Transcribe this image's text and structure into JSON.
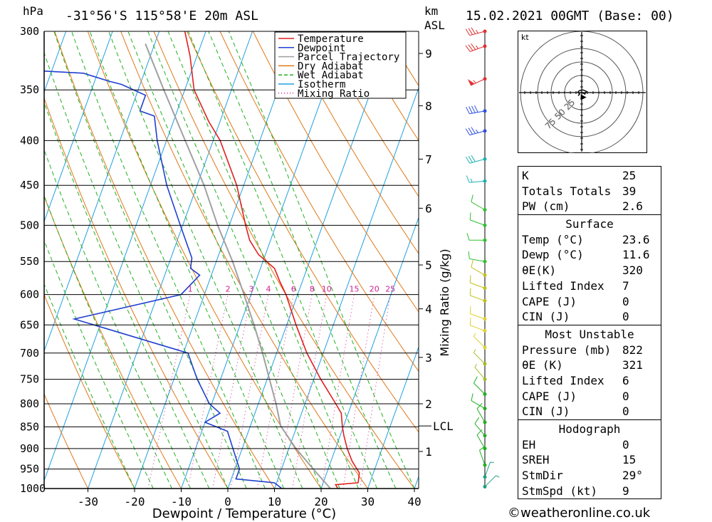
{
  "header": {
    "unit_pressure": "hPa",
    "location": "-31°56'S 115°58'E 20m ASL",
    "unit_km": "km",
    "unit_asl": "ASL",
    "datetime": "15.02.2021 00GMT (Base: 00)"
  },
  "chart_data": {
    "type": "line",
    "title": "",
    "xlabel": "Dewpoint / Temperature (°C)",
    "ylabel": "hPa",
    "y2label": "Mixing Ratio (g/kg)",
    "xlim": [
      -40,
      40
    ],
    "ylim": [
      1000,
      300
    ],
    "skew": true,
    "x_ticks": [
      -30,
      -20,
      -10,
      0,
      10,
      20,
      30,
      40
    ],
    "pressure_ticks": [
      300,
      350,
      400,
      450,
      500,
      550,
      600,
      650,
      700,
      750,
      800,
      850,
      900,
      950,
      1000
    ],
    "km_ticks": [
      {
        "km": "1",
        "p": 907
      },
      {
        "km": "2",
        "p": 800
      },
      {
        "km": "3",
        "p": 708
      },
      {
        "km": "4",
        "p": 623
      },
      {
        "km": "5",
        "p": 555
      },
      {
        "km": "6",
        "p": 478
      },
      {
        "km": "7",
        "p": 420
      },
      {
        "km": "8",
        "p": 365
      },
      {
        "km": "9",
        "p": 318
      }
    ],
    "lcl": {
      "label": "LCL",
      "p": 848
    },
    "mixing_ratio_labels": [
      "1",
      "2",
      "3",
      "4",
      "6",
      "8",
      "10",
      "15",
      "20",
      "25"
    ],
    "legend": {
      "position": "top-right",
      "entries": [
        {
          "name": "Temperature",
          "color": "#e02020",
          "style": "solid"
        },
        {
          "name": "Dewpoint",
          "color": "#2040d0",
          "style": "solid"
        },
        {
          "name": "Parcel Trajectory",
          "color": "#a0a0a0",
          "style": "solid"
        },
        {
          "name": "Dry Adiabat",
          "color": "#e07818",
          "style": "solid"
        },
        {
          "name": "Wet Adiabat",
          "color": "#20b020",
          "style": "dashed"
        },
        {
          "name": "Isotherm",
          "color": "#20a0e0",
          "style": "solid"
        },
        {
          "name": "Mixing Ratio",
          "color": "#d02090",
          "style": "dotted"
        }
      ]
    },
    "series": [
      {
        "name": "Temperature",
        "points": [
          [
            1000,
            23.6
          ],
          [
            990,
            22.8
          ],
          [
            985,
            27.5
          ],
          [
            960,
            27.0
          ],
          [
            930,
            24.5
          ],
          [
            900,
            22.5
          ],
          [
            870,
            20.8
          ],
          [
            850,
            19.8
          ],
          [
            820,
            18.5
          ],
          [
            800,
            16.6
          ],
          [
            750,
            11.5
          ],
          [
            700,
            6.5
          ],
          [
            650,
            2.0
          ],
          [
            600,
            -2.5
          ],
          [
            580,
            -4.8
          ],
          [
            560,
            -7.0
          ],
          [
            540,
            -11.5
          ],
          [
            520,
            -14.5
          ],
          [
            500,
            -16.5
          ],
          [
            450,
            -21.5
          ],
          [
            400,
            -28.5
          ],
          [
            380,
            -32.5
          ],
          [
            350,
            -38.0
          ],
          [
            320,
            -41.5
          ],
          [
            300,
            -44.5
          ]
        ]
      },
      {
        "name": "Dewpoint",
        "points": [
          [
            1000,
            11.6
          ],
          [
            985,
            9.5
          ],
          [
            975,
            1.0
          ],
          [
            950,
            1.0
          ],
          [
            900,
            -2.0
          ],
          [
            860,
            -4.5
          ],
          [
            840,
            -10.0
          ],
          [
            820,
            -7.5
          ],
          [
            800,
            -10.5
          ],
          [
            750,
            -15.0
          ],
          [
            700,
            -19.0
          ],
          [
            640,
            -46.0
          ],
          [
            600,
            -25.0
          ],
          [
            570,
            -22.5
          ],
          [
            560,
            -25.0
          ],
          [
            545,
            -25.5
          ],
          [
            500,
            -30.5
          ],
          [
            450,
            -36.5
          ],
          [
            400,
            -42.0
          ],
          [
            375,
            -44.5
          ],
          [
            370,
            -48.0
          ],
          [
            355,
            -48.0
          ],
          [
            345,
            -54.0
          ],
          [
            342,
            -57.0
          ],
          [
            335,
            -63.0
          ],
          [
            330,
            -86.0
          ],
          [
            300,
            -92.0
          ]
        ]
      },
      {
        "name": "Parcel Trajectory",
        "points": [
          [
            1000,
            22.0
          ],
          [
            950,
            16.8
          ],
          [
            900,
            11.5
          ],
          [
            848,
            6.5
          ],
          [
            800,
            3.8
          ],
          [
            750,
            0.5
          ],
          [
            700,
            -3.0
          ],
          [
            650,
            -7.0
          ],
          [
            600,
            -11.5
          ],
          [
            550,
            -16.5
          ],
          [
            500,
            -22.5
          ],
          [
            450,
            -28.5
          ],
          [
            400,
            -36.0
          ],
          [
            350,
            -44.5
          ],
          [
            310,
            -52.0
          ]
        ]
      }
    ],
    "wind_barbs": [
      {
        "p": 300,
        "dir": 255,
        "kt": 35
      },
      {
        "p": 312,
        "dir": 250,
        "kt": 35
      },
      {
        "p": 340,
        "dir": 245,
        "kt": 55
      },
      {
        "p": 370,
        "dir": 260,
        "kt": 40
      },
      {
        "p": 390,
        "dir": 255,
        "kt": 35
      },
      {
        "p": 420,
        "dir": 255,
        "kt": 30
      },
      {
        "p": 445,
        "dir": 265,
        "kt": 15
      },
      {
        "p": 480,
        "dir": 300,
        "kt": 10
      },
      {
        "p": 500,
        "dir": 290,
        "kt": 10
      },
      {
        "p": 520,
        "dir": 270,
        "kt": 10
      },
      {
        "p": 550,
        "dir": 280,
        "kt": 10
      },
      {
        "p": 570,
        "dir": 300,
        "kt": 10
      },
      {
        "p": 590,
        "dir": 290,
        "kt": 10
      },
      {
        "p": 610,
        "dir": 290,
        "kt": 10
      },
      {
        "p": 640,
        "dir": 290,
        "kt": 10
      },
      {
        "p": 660,
        "dir": 290,
        "kt": 10
      },
      {
        "p": 690,
        "dir": 315,
        "kt": 5
      },
      {
        "p": 720,
        "dir": 315,
        "kt": 5
      },
      {
        "p": 750,
        "dir": 320,
        "kt": 5
      },
      {
        "p": 780,
        "dir": 315,
        "kt": 10
      },
      {
        "p": 810,
        "dir": 300,
        "kt": 10
      },
      {
        "p": 840,
        "dir": 330,
        "kt": 10
      },
      {
        "p": 870,
        "dir": 320,
        "kt": 10
      },
      {
        "p": 900,
        "dir": 330,
        "kt": 10
      },
      {
        "p": 940,
        "dir": 340,
        "kt": 10
      },
      {
        "p": 970,
        "dir": 20,
        "kt": 5
      },
      {
        "p": 995,
        "dir": 45,
        "kt": 5
      }
    ]
  },
  "hodograph": {
    "unit": "kt",
    "ring_labels": [
      "25",
      "50",
      "75"
    ],
    "trace_uv": [
      [
        -1.5,
        0.5
      ],
      [
        2.5,
        -1.0
      ],
      [
        4.0,
        -2.0
      ],
      [
        6.0,
        1.5
      ],
      [
        1.5,
        3.5
      ],
      [
        -3.0,
        2.5
      ],
      [
        -5.0,
        0.5
      ],
      [
        -2.5,
        -1.5
      ],
      [
        -4.5,
        -4.0
      ],
      [
        -3.0,
        -2.0
      ]
    ],
    "storm_motion_uv": [
      1.5,
      -6.0
    ]
  },
  "indices": {
    "basic": [
      {
        "k": "K",
        "v": "25"
      },
      {
        "k": "Totals Totals",
        "v": "39"
      },
      {
        "k": "PW (cm)",
        "v": "2.6"
      }
    ],
    "surface": {
      "title": "Surface",
      "rows": [
        {
          "k": "Temp (°C)",
          "v": "23.6"
        },
        {
          "k": "Dewp (°C)",
          "v": "11.6"
        },
        {
          "k": "θE(K)",
          "v": "320"
        },
        {
          "k": "Lifted Index",
          "v": "7"
        },
        {
          "k": "CAPE (J)",
          "v": "0"
        },
        {
          "k": "CIN (J)",
          "v": "0"
        }
      ]
    },
    "most_unstable": {
      "title": "Most Unstable",
      "rows": [
        {
          "k": "Pressure (mb)",
          "v": "822"
        },
        {
          "k": "θE (K)",
          "v": "321"
        },
        {
          "k": "Lifted Index",
          "v": "6"
        },
        {
          "k": "CAPE (J)",
          "v": "0"
        },
        {
          "k": "CIN (J)",
          "v": "0"
        }
      ]
    },
    "hodograph": {
      "title": "Hodograph",
      "rows": [
        {
          "k": "EH",
          "v": "0"
        },
        {
          "k": "SREH",
          "v": "15"
        },
        {
          "k": "StmDir",
          "v": "29°"
        },
        {
          "k": "StmSpd (kt)",
          "v": "9"
        }
      ]
    }
  },
  "credit": "©weatheronline.co.uk",
  "colors": {
    "temperature": "#e02020",
    "dewpoint": "#2040d0",
    "parcel": "#a0a0a0",
    "dry_adiabat": "#e07818",
    "wet_adiabat": "#20b020",
    "isotherm": "#20a0e0",
    "mixing_ratio": "#d02090"
  }
}
